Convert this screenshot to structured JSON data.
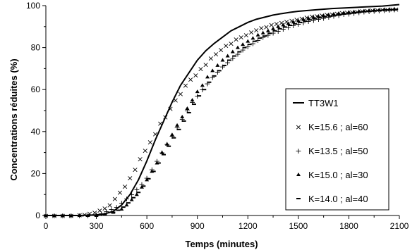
{
  "chart_data": {
    "type": "line",
    "xlabel": "Temps (minutes)",
    "ylabel": "Concentrations réduites (%)",
    "xlim": [
      0,
      2100
    ],
    "ylim": [
      0,
      100
    ],
    "x_ticks": [
      0,
      300,
      600,
      900,
      1200,
      1500,
      1800,
      2100
    ],
    "y_ticks": [
      0,
      20,
      40,
      60,
      80,
      100
    ],
    "x_tick_labels": [
      "0",
      "300",
      "600",
      "900",
      "1200",
      "1500",
      "1800",
      "2100"
    ],
    "y_tick_labels": [
      "0",
      "20",
      "40",
      "60",
      "80",
      "100"
    ],
    "grid": false,
    "legend_position": "right",
    "series": [
      {
        "name": "TT3W1",
        "style": "line",
        "marker": "none",
        "x": [
          0,
          100,
          200,
          300,
          350,
          400,
          450,
          500,
          550,
          600,
          650,
          700,
          750,
          800,
          850,
          900,
          950,
          1000,
          1050,
          1100,
          1150,
          1200,
          1250,
          1300,
          1350,
          1400,
          1450,
          1500,
          1600,
          1700,
          1800,
          1900,
          2000,
          2100
        ],
        "values": [
          0,
          0,
          0,
          0.3,
          0.8,
          2,
          5,
          10,
          17,
          26,
          36,
          45,
          54,
          62,
          68,
          74,
          78.5,
          82,
          85,
          88,
          90,
          92,
          93.5,
          94.5,
          95.5,
          96.2,
          96.8,
          97.3,
          98,
          98.6,
          99,
          99.4,
          99.8,
          100.5
        ]
      },
      {
        "name": "K=15.6 ; al=60",
        "style": "markers",
        "marker": "x",
        "x": [
          0,
          50,
          100,
          150,
          200,
          230,
          260,
          290,
          320,
          350,
          380,
          410,
          440,
          470,
          500,
          530,
          560,
          590,
          620,
          650,
          680,
          710,
          740,
          770,
          800,
          830,
          860,
          890,
          920,
          950,
          980,
          1010,
          1040,
          1070,
          1100,
          1130,
          1160,
          1190,
          1220,
          1250,
          1280,
          1310,
          1340,
          1370,
          1400,
          1430,
          1460,
          1490,
          1520,
          1550,
          1580,
          1610,
          1640,
          1670,
          1700,
          1730,
          1760,
          1790,
          1820,
          1850,
          1880,
          1910,
          1940,
          1970,
          2000,
          2030,
          2060,
          2080
        ],
        "values": [
          0,
          0,
          0,
          0,
          0.3,
          0.5,
          1,
          1.5,
          2.5,
          3.5,
          5,
          8,
          11,
          14,
          18,
          22,
          27,
          31,
          35,
          39,
          44,
          47,
          51,
          55,
          58,
          62,
          65,
          67,
          70,
          72,
          75,
          77,
          79,
          81,
          82,
          84,
          85,
          86,
          87.5,
          88.5,
          89.5,
          90,
          91,
          91.5,
          92,
          92.5,
          93,
          93.5,
          94,
          94.5,
          95,
          95.2,
          95.5,
          95.8,
          96,
          96.3,
          96.6,
          96.8,
          97,
          97.2,
          97.4,
          97.6,
          97.8,
          98,
          98.1,
          98.2,
          98.3,
          98.4
        ]
      },
      {
        "name": "K=13.5 ; al=50",
        "style": "markers",
        "marker": "+",
        "x": [
          0,
          50,
          100,
          150,
          200,
          250,
          300,
          330,
          360,
          390,
          420,
          450,
          480,
          510,
          540,
          570,
          600,
          630,
          660,
          690,
          720,
          750,
          780,
          810,
          840,
          870,
          900,
          930,
          960,
          990,
          1020,
          1050,
          1080,
          1110,
          1140,
          1170,
          1200,
          1230,
          1260,
          1290,
          1320,
          1350,
          1380,
          1410,
          1440,
          1470,
          1500,
          1530,
          1560,
          1590,
          1620,
          1650,
          1680,
          1710,
          1740,
          1770,
          1800,
          1830,
          1860,
          1890,
          1920,
          1950,
          1980,
          2010,
          2040,
          2070
        ],
        "values": [
          0,
          0,
          0,
          0,
          0,
          0,
          0.5,
          1,
          2,
          3,
          4,
          6,
          8,
          10,
          12.5,
          15,
          18,
          22,
          26,
          30,
          34,
          38,
          42,
          46,
          50,
          54,
          57,
          60,
          63,
          66,
          68.5,
          71,
          73,
          75,
          77,
          79,
          80.5,
          82,
          83.5,
          85,
          86,
          87,
          88,
          89,
          89.8,
          90.6,
          91.3,
          92,
          92.6,
          93.2,
          93.7,
          94.2,
          94.7,
          95.1,
          95.5,
          95.9,
          96.2,
          96.5,
          96.8,
          97.1,
          97.3,
          97.5,
          97.7,
          97.9,
          98,
          98.1
        ]
      },
      {
        "name": "K=15.0 ; al=30",
        "style": "markers",
        "marker": "triangle",
        "x": [
          0,
          50,
          100,
          150,
          200,
          250,
          300,
          350,
          400,
          450,
          480,
          510,
          540,
          570,
          600,
          630,
          660,
          690,
          720,
          750,
          780,
          810,
          840,
          870,
          900,
          930,
          960,
          990,
          1020,
          1050,
          1080,
          1110,
          1140,
          1170,
          1200,
          1230,
          1260,
          1290,
          1320,
          1350,
          1380,
          1410,
          1440,
          1470,
          1500,
          1530,
          1560,
          1590,
          1620,
          1650,
          1680,
          1710,
          1740,
          1770,
          1800,
          1830,
          1860,
          1890,
          1920,
          1950,
          1980,
          2010,
          2040,
          2070
        ],
        "values": [
          0,
          0,
          0,
          0,
          0,
          0,
          0,
          0.5,
          1.5,
          3,
          5,
          7.5,
          10,
          13.5,
          17,
          21,
          25,
          30,
          34,
          38.5,
          43,
          47,
          51,
          55,
          59,
          62,
          66,
          69,
          71.5,
          74,
          76,
          78,
          80,
          81.5,
          83,
          84.5,
          86,
          87,
          88,
          89,
          90,
          90.8,
          91.5,
          92.2,
          92.8,
          93.4,
          93.9,
          94.4,
          94.8,
          95.2,
          95.6,
          96,
          96.3,
          96.6,
          96.9,
          97.1,
          97.3,
          97.5,
          97.7,
          97.9,
          98,
          98.2,
          98.3,
          98.4
        ]
      },
      {
        "name": "K=14.0 ; al=40",
        "style": "markers",
        "marker": "dash",
        "x": [
          0,
          50,
          100,
          150,
          200,
          250,
          300,
          350,
          400,
          430,
          460,
          490,
          520,
          550,
          580,
          610,
          640,
          670,
          700,
          730,
          760,
          790,
          820,
          850,
          880,
          910,
          940,
          970,
          1000,
          1030,
          1060,
          1090,
          1120,
          1150,
          1180,
          1210,
          1240,
          1270,
          1300,
          1330,
          1360,
          1390,
          1420,
          1450,
          1480,
          1510,
          1540,
          1570,
          1600,
          1630,
          1660,
          1690,
          1720,
          1750,
          1780,
          1810,
          1840,
          1870,
          1900,
          1930,
          1960,
          1990,
          2020,
          2050,
          2080
        ],
        "values": [
          0,
          0,
          0,
          0,
          0,
          0,
          0,
          0.5,
          1.5,
          2.5,
          4,
          6,
          8.5,
          11,
          14,
          17.5,
          21,
          25,
          29,
          33,
          37,
          41,
          45,
          49,
          53,
          57,
          60,
          63.5,
          66.5,
          69,
          71.5,
          74,
          76,
          78,
          80,
          81.5,
          83,
          84.5,
          85.5,
          86.8,
          88,
          89,
          89.8,
          90.6,
          91.3,
          92,
          92.6,
          93.2,
          93.7,
          94.2,
          94.6,
          95,
          95.4,
          95.8,
          96.1,
          96.4,
          96.7,
          97,
          97.2,
          97.4,
          97.6,
          97.8,
          98,
          98.1,
          98.2
        ]
      }
    ]
  }
}
